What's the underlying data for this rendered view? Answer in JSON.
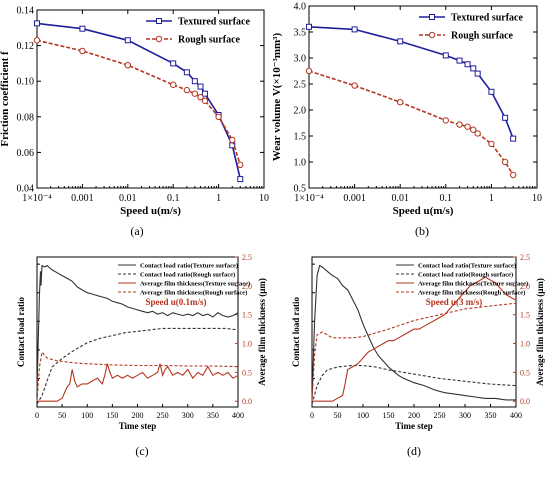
{
  "chart_data": [
    {
      "id": "a",
      "type": "line",
      "panel_label": "(a)",
      "xlabel": "Speed u(m/s)",
      "ylabel": "Friction coefficient f",
      "x_scale": "log",
      "xlim": [
        0.0001,
        10
      ],
      "ylim": [
        0.04,
        0.14
      ],
      "x_tick_labels": [
        "1×10⁻⁴",
        "0.001",
        "0.01",
        "0.1",
        "1",
        "10"
      ],
      "y_tick_labels": [
        "0.04",
        "0.06",
        "0.08",
        "0.10",
        "0.12",
        "0.14"
      ],
      "legend_position": "top-right",
      "colors": {
        "textured": "#1f1f9e",
        "rough": "#b5351e"
      },
      "series": [
        {
          "name": "Textured surface",
          "marker": "square",
          "x": [
            0.0001,
            0.001,
            0.01,
            0.1,
            0.2,
            0.3,
            0.4,
            0.5,
            1,
            2,
            3
          ],
          "y": [
            0.1325,
            0.1295,
            0.123,
            0.11,
            0.105,
            0.1,
            0.097,
            0.093,
            0.081,
            0.064,
            0.045
          ]
        },
        {
          "name": "Rough surface",
          "marker": "circle",
          "x": [
            0.0001,
            0.001,
            0.01,
            0.1,
            0.2,
            0.3,
            0.4,
            0.5,
            1,
            2,
            3
          ],
          "y": [
            0.123,
            0.117,
            0.109,
            0.098,
            0.095,
            0.093,
            0.091,
            0.089,
            0.08,
            0.067,
            0.053
          ]
        }
      ]
    },
    {
      "id": "b",
      "type": "line",
      "panel_label": "(b)",
      "xlabel": "Speed u(m/s)",
      "ylabel": "Wear  volume V(×10⁻³mm³)",
      "x_scale": "log",
      "xlim": [
        0.0001,
        10
      ],
      "ylim": [
        0.5,
        4.0
      ],
      "x_tick_labels": [
        "1×10⁻⁴",
        "0.001",
        "0.01",
        "0.1",
        "1",
        "10"
      ],
      "y_tick_labels": [
        "0.5",
        "1.0",
        "1.5",
        "2.0",
        "2.5",
        "3.0",
        "3.5",
        "4.0"
      ],
      "legend_position": "top-right",
      "series": [
        {
          "name": "Textured surface",
          "marker": "square",
          "x": [
            0.0001,
            0.001,
            0.01,
            0.1,
            0.2,
            0.3,
            0.4,
            0.5,
            1,
            2,
            3
          ],
          "y": [
            3.6,
            3.55,
            3.32,
            3.05,
            2.95,
            2.88,
            2.8,
            2.7,
            2.35,
            1.85,
            1.45
          ]
        },
        {
          "name": "Rough surface",
          "marker": "circle",
          "x": [
            0.0001,
            0.001,
            0.01,
            0.1,
            0.2,
            0.3,
            0.4,
            0.5,
            1,
            2,
            3
          ],
          "y": [
            2.75,
            2.47,
            2.15,
            1.8,
            1.72,
            1.68,
            1.62,
            1.55,
            1.35,
            1.0,
            0.75
          ]
        }
      ]
    },
    {
      "id": "c",
      "type": "line",
      "panel_label": "(c)",
      "xlabel": "Time step",
      "ylabel": "Contact load ratio",
      "ylabel_right": "Average film thickness (μm)",
      "xlim": [
        0,
        400
      ],
      "ylim": [
        0,
        1.05
      ],
      "ylim_right": [
        -0.1,
        2.5
      ],
      "x_tick_labels": [
        "0",
        "50",
        "100",
        "150",
        "200",
        "250",
        "300",
        "350",
        "400"
      ],
      "y_tick_labels_right": [
        "0.0",
        "0.5",
        "1.0",
        "1.5",
        "2.0",
        "2.5"
      ],
      "annotation": "Speed u(0.1m/s)",
      "legend_position": "top-right",
      "series": [
        {
          "name": "Contact load ratio(Texture surface)",
          "axis": "left",
          "style": "solid",
          "color": "#333333",
          "x": [
            0,
            2,
            5,
            7,
            8,
            10,
            15,
            20,
            30,
            40,
            50,
            60,
            70,
            80,
            90,
            100,
            110,
            120,
            130,
            140,
            150,
            160,
            170,
            180,
            190,
            200,
            210,
            220,
            230,
            240,
            250,
            260,
            270,
            280,
            290,
            300,
            310,
            320,
            330,
            340,
            350,
            360,
            370,
            380,
            390,
            400
          ],
          "y": [
            0.1,
            0.4,
            0.8,
            0.95,
            0.85,
            0.99,
            0.98,
            0.99,
            0.96,
            0.94,
            0.92,
            0.9,
            0.88,
            0.84,
            0.82,
            0.8,
            0.79,
            0.78,
            0.77,
            0.76,
            0.74,
            0.73,
            0.72,
            0.7,
            0.69,
            0.68,
            0.67,
            0.66,
            0.67,
            0.65,
            0.66,
            0.64,
            0.66,
            0.65,
            0.64,
            0.65,
            0.64,
            0.66,
            0.64,
            0.65,
            0.63,
            0.66,
            0.64,
            0.63,
            0.64,
            0.66
          ]
        },
        {
          "name": "Contact load ratio(Rough surface)",
          "axis": "left",
          "style": "dashed",
          "color": "#333333",
          "x": [
            0,
            10,
            20,
            30,
            50,
            75,
            100,
            125,
            150,
            175,
            200,
            225,
            250,
            275,
            300,
            325,
            350,
            375,
            400
          ],
          "y": [
            0.02,
            0.08,
            0.18,
            0.28,
            0.34,
            0.4,
            0.45,
            0.48,
            0.5,
            0.52,
            0.53,
            0.54,
            0.55,
            0.55,
            0.55,
            0.55,
            0.55,
            0.55,
            0.54
          ]
        },
        {
          "name": "Average film thickness(Texture surface)",
          "axis": "right",
          "style": "solid",
          "color": "#b5351e",
          "x": [
            0,
            10,
            20,
            40,
            50,
            55,
            60,
            65,
            70,
            75,
            80,
            90,
            100,
            110,
            120,
            130,
            135,
            140,
            145,
            150,
            160,
            170,
            180,
            190,
            200,
            210,
            220,
            230,
            240,
            245,
            250,
            255,
            260,
            270,
            280,
            290,
            300,
            310,
            320,
            330,
            340,
            350,
            360,
            370,
            380,
            390,
            400
          ],
          "y": [
            0.0,
            0.0,
            0.0,
            0.0,
            0.05,
            0.15,
            0.25,
            0.3,
            0.55,
            0.35,
            0.25,
            0.3,
            0.3,
            0.35,
            0.4,
            0.3,
            0.45,
            0.65,
            0.5,
            0.4,
            0.45,
            0.4,
            0.45,
            0.4,
            0.45,
            0.5,
            0.4,
            0.45,
            0.5,
            0.65,
            0.45,
            0.55,
            0.6,
            0.45,
            0.5,
            0.45,
            0.55,
            0.4,
            0.5,
            0.45,
            0.6,
            0.45,
            0.5,
            0.45,
            0.5,
            0.4,
            0.45
          ]
        },
        {
          "name": "Average film thickness(Rough surface)",
          "axis": "right",
          "style": "dashed",
          "color": "#b5351e",
          "x": [
            0,
            5,
            10,
            20,
            40,
            60,
            80,
            100,
            150,
            200,
            250,
            300,
            350,
            400
          ],
          "y": [
            0.0,
            0.6,
            0.85,
            0.75,
            0.7,
            0.68,
            0.66,
            0.65,
            0.63,
            0.62,
            0.62,
            0.61,
            0.61,
            0.6
          ]
        }
      ]
    },
    {
      "id": "d",
      "type": "line",
      "panel_label": "(d)",
      "xlabel": "Time step",
      "ylabel": "Contact load ratio",
      "ylabel_right": "Average film thickness (μm)",
      "xlim": [
        0,
        400
      ],
      "ylim": [
        0,
        1.05
      ],
      "ylim_right": [
        -0.1,
        2.5
      ],
      "x_tick_labels": [
        "0",
        "50",
        "100",
        "150",
        "200",
        "250",
        "300",
        "350",
        "400"
      ],
      "y_tick_labels_right": [
        "0.0",
        "0.5",
        "1.0",
        "1.5",
        "2.0",
        "2.5"
      ],
      "annotation": "Speed u(3 m/s)",
      "legend_position": "top-right",
      "series": [
        {
          "name": "Contact load ratio(Texture surface)",
          "axis": "left",
          "style": "solid",
          "color": "#333333",
          "x": [
            0,
            5,
            10,
            15,
            20,
            30,
            40,
            50,
            60,
            70,
            80,
            90,
            100,
            110,
            120,
            130,
            140,
            150,
            160,
            170,
            180,
            200,
            220,
            240,
            260,
            280,
            300,
            320,
            340,
            360,
            380,
            400
          ],
          "y": [
            0.05,
            0.6,
            0.92,
            0.99,
            0.98,
            0.95,
            0.92,
            0.9,
            0.85,
            0.82,
            0.75,
            0.68,
            0.58,
            0.5,
            0.42,
            0.36,
            0.32,
            0.28,
            0.25,
            0.22,
            0.2,
            0.17,
            0.15,
            0.12,
            0.1,
            0.09,
            0.08,
            0.07,
            0.06,
            0.06,
            0.05,
            0.05
          ]
        },
        {
          "name": "Contact load ratio(Rough surface)",
          "axis": "left",
          "style": "dashed",
          "color": "#333333",
          "x": [
            0,
            10,
            20,
            30,
            50,
            75,
            100,
            125,
            150,
            200,
            250,
            300,
            350,
            400
          ],
          "y": [
            0.02,
            0.15,
            0.22,
            0.26,
            0.28,
            0.29,
            0.29,
            0.28,
            0.26,
            0.23,
            0.2,
            0.18,
            0.16,
            0.15
          ]
        },
        {
          "name": "Average film thickness(Texture surface)",
          "axis": "right",
          "style": "solid",
          "color": "#b5351e",
          "x": [
            0,
            10,
            20,
            40,
            50,
            60,
            65,
            70,
            80,
            90,
            100,
            110,
            120,
            130,
            140,
            150,
            160,
            170,
            180,
            190,
            200,
            210,
            220,
            230,
            240,
            250,
            260,
            270,
            280,
            290,
            300,
            310,
            320,
            330,
            340,
            350,
            360,
            370,
            380,
            390,
            400
          ],
          "y": [
            0.0,
            0.0,
            0.0,
            0.0,
            0.05,
            0.1,
            0.3,
            0.55,
            0.6,
            0.65,
            0.75,
            0.85,
            0.9,
            0.95,
            1.0,
            1.05,
            1.05,
            1.1,
            1.15,
            1.2,
            1.25,
            1.25,
            1.3,
            1.35,
            1.4,
            1.45,
            1.5,
            1.6,
            1.7,
            1.8,
            1.9,
            2.0,
            2.05,
            2.1,
            2.15,
            2.1,
            2.05,
            1.95,
            1.85,
            1.8,
            1.75
          ]
        },
        {
          "name": "Average film thickness(Rough surface)",
          "axis": "right",
          "style": "dashed",
          "color": "#b5351e",
          "x": [
            0,
            5,
            10,
            20,
            30,
            40,
            60,
            80,
            100,
            150,
            200,
            250,
            300,
            350,
            400
          ],
          "y": [
            0.0,
            0.8,
            1.15,
            1.2,
            1.15,
            1.1,
            1.1,
            1.1,
            1.12,
            1.25,
            1.4,
            1.5,
            1.6,
            1.65,
            1.7
          ]
        }
      ]
    }
  ]
}
